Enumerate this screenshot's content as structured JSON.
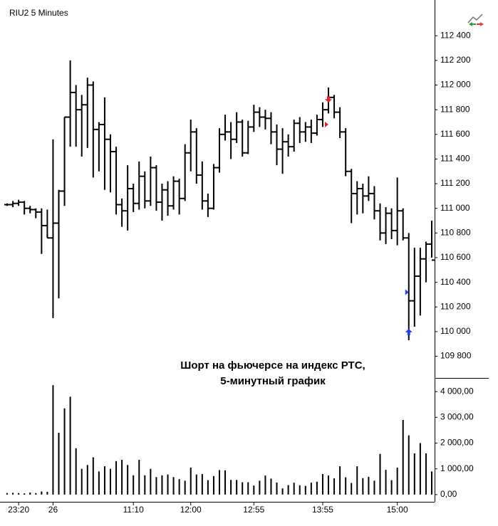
{
  "chart_data": [
    {
      "type": "ohlc",
      "title": "RIU2  5 Minutes",
      "annotation": [
        "Шорт на фьючерсе на индекс РТС,",
        "5-минутный график"
      ],
      "color": "#000000",
      "open": [
        111030,
        111030,
        111040,
        111050,
        111000,
        110990,
        110970,
        110860,
        110760,
        110880,
        111140,
        111740,
        111940,
        111800,
        111840,
        112000,
        111640,
        111680,
        111560,
        111460,
        111030,
        110980,
        111160,
        111040,
        111260,
        111060,
        111330,
        111050,
        111150,
        111020,
        111220,
        111080,
        111450,
        111620,
        111270,
        111060,
        111000,
        111330,
        111600,
        111620,
        111560,
        111700,
        111450,
        111660,
        111780,
        111740,
        111730,
        111620,
        111480,
        111540,
        111500,
        111690,
        111620,
        111660,
        111610,
        111720,
        111800,
        111900,
        111780,
        111620,
        111300,
        111120,
        111160,
        111100,
        111120,
        110980,
        110800,
        110960,
        110820,
        110980,
        110760,
        110250,
        110450,
        110590,
        110710
      ],
      "high": [
        111040,
        111060,
        111070,
        111060,
        111020,
        111000,
        111000,
        110990,
        111560,
        111150,
        111740,
        112200,
        112000,
        111920,
        112060,
        112030,
        111700,
        111900,
        111600,
        111500,
        111080,
        111350,
        111200,
        111380,
        111300,
        111420,
        111350,
        111200,
        111220,
        111260,
        111240,
        111520,
        111720,
        111650,
        111380,
        111120,
        111360,
        111650,
        111760,
        111700,
        111780,
        111720,
        111710,
        111840,
        111820,
        111800,
        111780,
        111680,
        111650,
        111600,
        111720,
        111740,
        111700,
        111720,
        111760,
        111860,
        111980,
        111920,
        111820,
        111650,
        111320,
        111220,
        111200,
        111260,
        111180,
        111040,
        111010,
        111000,
        111250,
        111000,
        110800,
        110680,
        110680,
        110730,
        110900
      ],
      "low": [
        111020,
        111010,
        111020,
        110950,
        110960,
        110920,
        110630,
        110760,
        110110,
        110270,
        111020,
        111500,
        111500,
        111420,
        111490,
        111250,
        111300,
        111150,
        111130,
        110950,
        110850,
        110820,
        110970,
        110990,
        111000,
        111020,
        110980,
        110900,
        110940,
        110990,
        110950,
        111060,
        111300,
        111200,
        110990,
        110930,
        110990,
        111290,
        111550,
        111400,
        111530,
        111420,
        111440,
        111620,
        111660,
        111640,
        111520,
        111350,
        111280,
        111420,
        111460,
        111530,
        111540,
        111530,
        111590,
        111660,
        111770,
        111730,
        111570,
        111260,
        110880,
        110950,
        110960,
        111060,
        110910,
        110740,
        110710,
        110750,
        110700,
        110740,
        109930,
        110040,
        110130,
        110400,
        110600
      ],
      "close": [
        111030,
        111040,
        111050,
        111000,
        110990,
        110970,
        110860,
        110760,
        110880,
        111140,
        111740,
        111940,
        111800,
        111840,
        112000,
        111640,
        111680,
        111560,
        111460,
        111030,
        110980,
        111160,
        111040,
        111260,
        111060,
        111330,
        111050,
        111150,
        111020,
        111220,
        111080,
        111450,
        111620,
        111270,
        111060,
        111000,
        111330,
        111600,
        111620,
        111560,
        111700,
        111450,
        111660,
        111780,
        111740,
        111730,
        111620,
        111480,
        111540,
        111500,
        111690,
        111620,
        111660,
        111610,
        111720,
        111800,
        111900,
        111780,
        111620,
        111300,
        111120,
        111160,
        111100,
        111120,
        110980,
        110800,
        110960,
        110820,
        110980,
        110760,
        110250,
        110450,
        110590,
        110710,
        110580
      ],
      "markers": [
        {
          "index": 56,
          "price": 111880,
          "shape": "arrow-down",
          "color": "#e8202a"
        },
        {
          "index": 56,
          "price": 111680,
          "shape": "triangle-right",
          "color": "#e8202a"
        },
        {
          "index": 70,
          "price": 110320,
          "shape": "triangle-right",
          "color": "#2040e0"
        },
        {
          "index": 70,
          "price": 110000,
          "shape": "arrow-up",
          "color": "#2040e0"
        }
      ],
      "ylim": [
        109630,
        112690
      ],
      "yticks": [
        {
          "value": 109800,
          "label": "109 800"
        },
        {
          "value": 110000,
          "label": "110 000"
        },
        {
          "value": 110200,
          "label": "110 200"
        },
        {
          "value": 110400,
          "label": "110 400"
        },
        {
          "value": 110600,
          "label": "110 600"
        },
        {
          "value": 110800,
          "label": "110 800"
        },
        {
          "value": 111000,
          "label": "111 000"
        },
        {
          "value": 111200,
          "label": "111 200"
        },
        {
          "value": 111400,
          "label": "111 400"
        },
        {
          "value": 111600,
          "label": "111 600"
        },
        {
          "value": 111800,
          "label": "111 800"
        },
        {
          "value": 112000,
          "label": "112 000"
        },
        {
          "value": 112200,
          "label": "112 200"
        },
        {
          "value": 112400,
          "label": "112 400"
        }
      ]
    },
    {
      "type": "bar",
      "color": "#000000",
      "categories": [
        null,
        null,
        "23:20",
        null,
        null,
        null,
        null,
        null,
        "26",
        null,
        null,
        null,
        null,
        null,
        null,
        null,
        null,
        null,
        null,
        null,
        null,
        null,
        "11:10",
        null,
        null,
        null,
        null,
        null,
        null,
        null,
        null,
        null,
        "12:00",
        null,
        null,
        null,
        null,
        null,
        null,
        null,
        null,
        null,
        null,
        "12:55",
        null,
        null,
        null,
        null,
        null,
        null,
        null,
        null,
        null,
        null,
        null,
        "13:55",
        null,
        null,
        null,
        null,
        null,
        null,
        null,
        null,
        null,
        null,
        null,
        null,
        "15:00",
        null,
        null,
        null,
        null,
        null,
        null
      ],
      "values": [
        60,
        70,
        60,
        50,
        80,
        60,
        120,
        110,
        4250,
        2400,
        3350,
        3800,
        1800,
        1000,
        1150,
        1450,
        900,
        1100,
        1000,
        1300,
        1350,
        1150,
        750,
        1350,
        750,
        1000,
        680,
        750,
        780,
        680,
        600,
        540,
        1050,
        780,
        800,
        560,
        720,
        950,
        940,
        570,
        570,
        480,
        480,
        350,
        540,
        740,
        620,
        470,
        240,
        370,
        460,
        360,
        340,
        460,
        500,
        800,
        740,
        630,
        1100,
        670,
        450,
        1100,
        640,
        690,
        540,
        1580,
        960,
        560,
        1050,
        2900,
        2300,
        1600,
        2000,
        1600,
        900
      ],
      "ylim": [
        -280,
        4475
      ],
      "yticks": [
        {
          "value": 0,
          "label": "0,00"
        },
        {
          "value": 1000,
          "label": "1 000,00"
        },
        {
          "value": 2000,
          "label": "2 000,00"
        },
        {
          "value": 3000,
          "label": "3 000,00"
        },
        {
          "value": 4000,
          "label": "4 000,00"
        }
      ]
    }
  ]
}
